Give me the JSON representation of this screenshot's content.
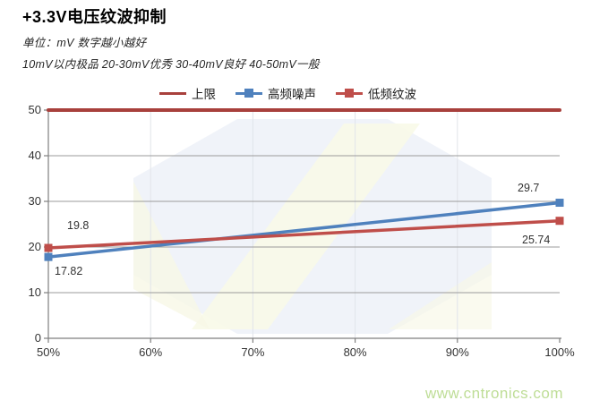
{
  "header": {
    "title": "+3.3V电压纹波抑制",
    "subtitle_unit": "单位：mV  数字越小越好",
    "subtitle_grades": "10mV以内极品  20-30mV优秀  30-40mV良好  40-50mV一般"
  },
  "watermark_text": "www.cntronics.com",
  "colors": {
    "watermark_text": "#bedd96",
    "upper_limit_line": "#a8403c",
    "high_freq_series": "#4f81bd",
    "low_freq_series": "#bf4e4a",
    "gridline": "#9b9b9b",
    "axis": "#7f7f7f"
  },
  "chart_data": {
    "type": "line",
    "title": "+3.3V电压纹波抑制",
    "xlabel": "",
    "ylabel": "",
    "x_categories": [
      "50%",
      "60%",
      "70%",
      "80%",
      "90%",
      "100%"
    ],
    "ylim": [
      0,
      50
    ],
    "yticks": [
      0,
      10,
      20,
      30,
      40,
      50
    ],
    "grid": "horizontal-major",
    "legend_position": "top",
    "series": [
      {
        "name": "上限",
        "marker": "none",
        "color": "#a8403c",
        "points": [
          {
            "x": "50%",
            "y": 50
          },
          {
            "x": "100%",
            "y": 50
          }
        ]
      },
      {
        "name": "高频噪声",
        "marker": "square",
        "color": "#4f81bd",
        "points": [
          {
            "x": "50%",
            "y": 17.82
          },
          {
            "x": "100%",
            "y": 29.7
          }
        ]
      },
      {
        "name": "低频纹波",
        "marker": "square",
        "color": "#bf4e4a",
        "points": [
          {
            "x": "50%",
            "y": 19.8
          },
          {
            "x": "100%",
            "y": 25.74
          }
        ]
      }
    ],
    "point_labels": [
      {
        "id": "hf-start",
        "text": "17.82"
      },
      {
        "id": "hf-end",
        "text": "29.7"
      },
      {
        "id": "lf-start",
        "text": "19.8"
      },
      {
        "id": "lf-end",
        "text": "25.74"
      }
    ]
  }
}
